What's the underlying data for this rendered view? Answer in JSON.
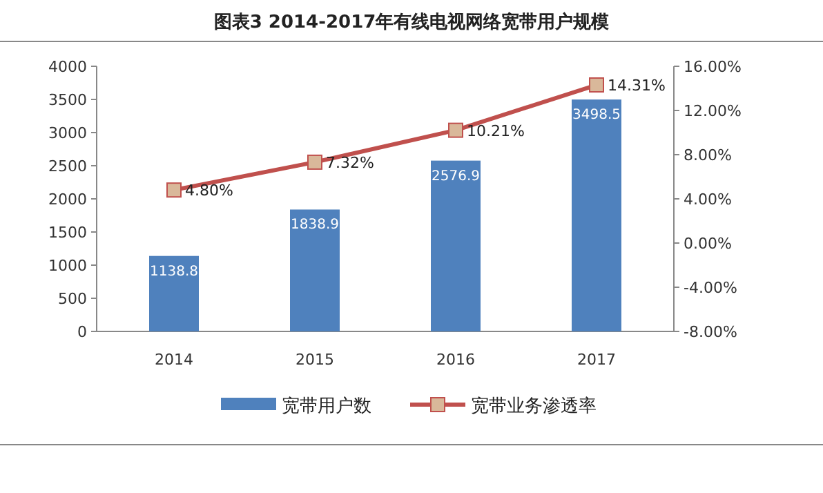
{
  "chart_data": {
    "type": "bar",
    "title": "图表3 2014-2017年有线电视网络宽带用户规模",
    "categories": [
      "2014",
      "2015",
      "2016",
      "2017"
    ],
    "series": [
      {
        "name": "宽带用户数",
        "color": "#4f81bd",
        "values": [
          1138.8,
          1838.9,
          2576.9,
          3498.5
        ],
        "value_labels": [
          "1138.8",
          "1838.9",
          "2576.9",
          "3498.5"
        ]
      },
      {
        "name": "宽带业务渗透率",
        "type": "line",
        "axis": "y2",
        "color": "#c0504d",
        "marker": "square",
        "values": [
          4.8,
          7.32,
          10.21,
          14.31
        ],
        "value_labels": [
          "4.80%",
          "7.32%",
          "10.21%",
          "14.31%"
        ]
      }
    ],
    "ylim": [
      0,
      4000
    ],
    "yticks": [
      0,
      500,
      1000,
      1500,
      2000,
      2500,
      3000,
      3500,
      4000
    ],
    "y2lim": [
      -8,
      16
    ],
    "y2ticks": [
      {
        "value": -8,
        "label": "-8.00%"
      },
      {
        "value": -4,
        "label": "-4.00%"
      },
      {
        "value": 0,
        "label": "0.00%"
      },
      {
        "value": 4,
        "label": "4.00%"
      },
      {
        "value": 8,
        "label": "8.00%"
      },
      {
        "value": 12,
        "label": "12.00%"
      },
      {
        "value": 16,
        "label": "16.00%"
      }
    ],
    "legend": "bottom"
  }
}
